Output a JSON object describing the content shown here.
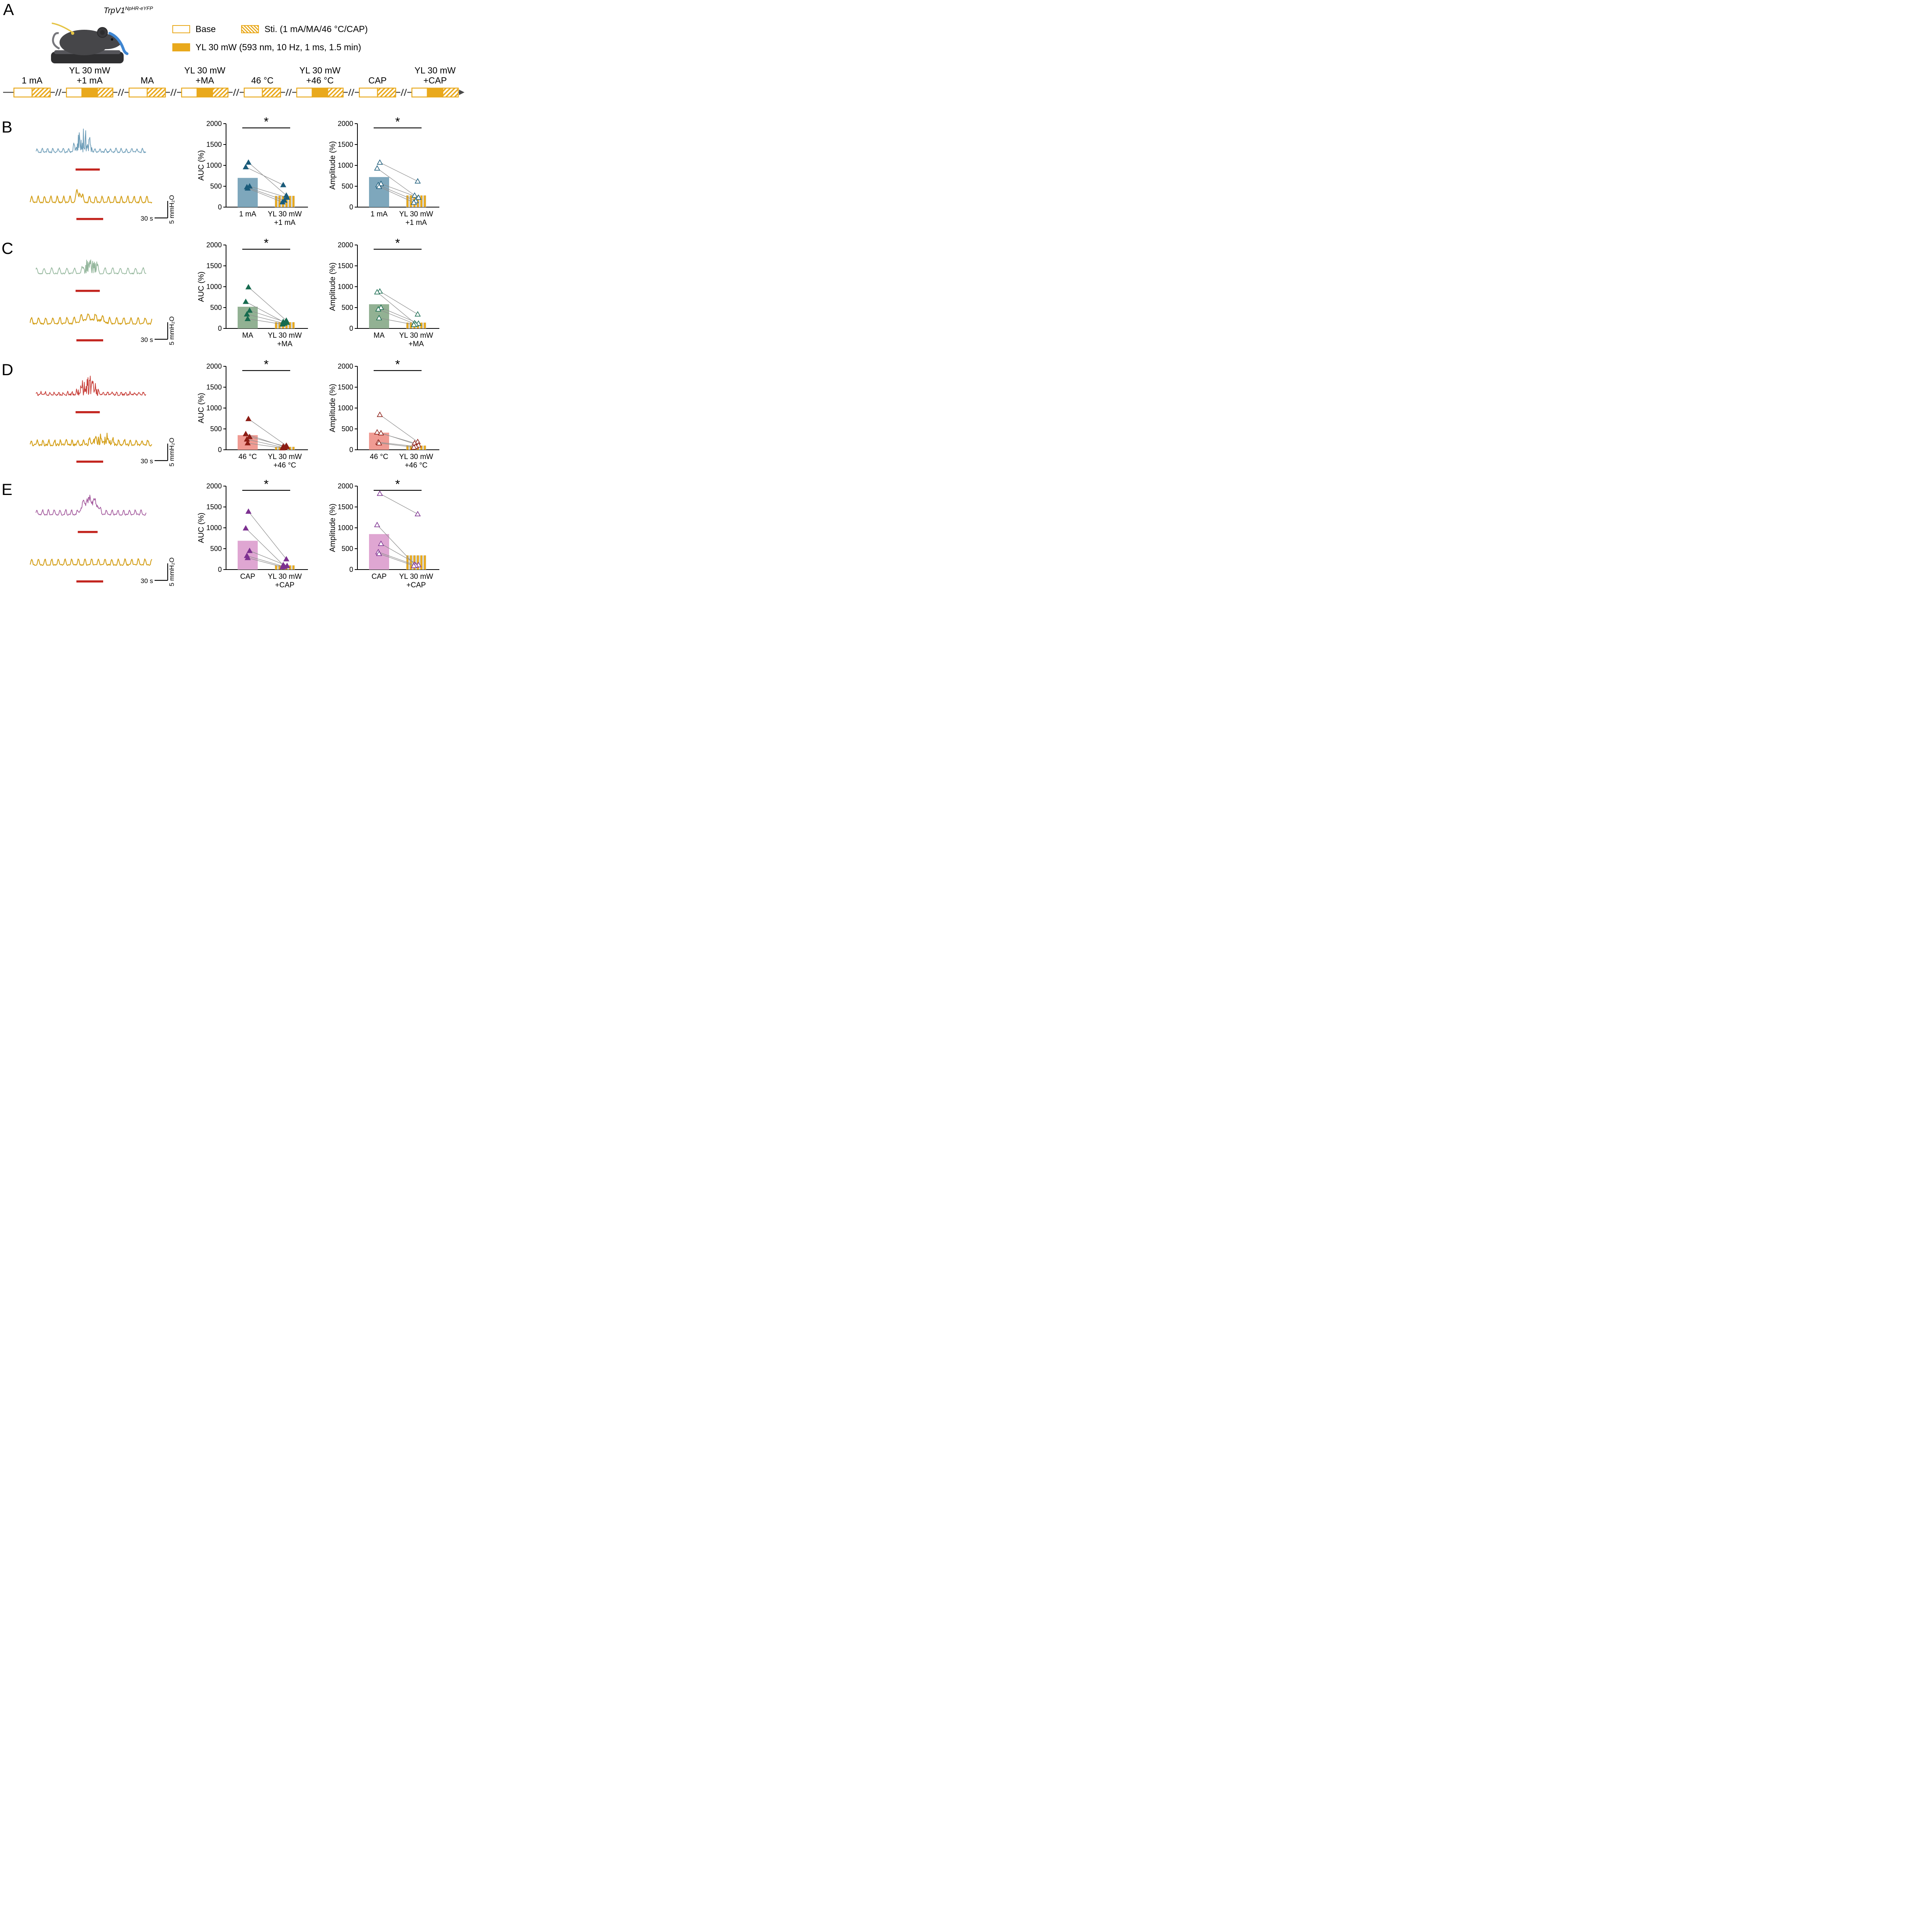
{
  "panel_a": {
    "label": "A",
    "mouse_title": "TrpV1",
    "mouse_title_sup": "NpHR-eYFP",
    "legend_base": "Base",
    "legend_sti": "Sti. (1 mA/MA/46 °C/CAP)",
    "legend_yl": "YL 30 mW (593 nm, 10 Hz, 1 ms, 1.5 min)",
    "timeline_groups": [
      {
        "lines": [
          "1 mA"
        ],
        "yl": false
      },
      {
        "lines": [
          "YL 30 mW",
          "+1 mA"
        ],
        "yl": true
      },
      {
        "lines": [
          "MA"
        ],
        "yl": false
      },
      {
        "lines": [
          "YL 30 mW",
          "+MA"
        ],
        "yl": true
      },
      {
        "lines": [
          "46 °C"
        ],
        "yl": false
      },
      {
        "lines": [
          "YL 30 mW",
          "+46 °C"
        ],
        "yl": true
      },
      {
        "lines": [
          "CAP"
        ],
        "yl": false
      },
      {
        "lines": [
          "YL 30 mW",
          "+CAP"
        ],
        "yl": true
      }
    ]
  },
  "scalebar": {
    "time": "30 s",
    "amp": "5 mmH₂O"
  },
  "colors": {
    "gold": "#E9A91C",
    "gold_trace": "#D4A01B",
    "stim_red": "#C3251F",
    "stripe_gray": "#D4D9DD",
    "pair_gray": "#8F8F8F",
    "axis": "#000000"
  },
  "panels": [
    {
      "label": "B",
      "trace_color": "#6D9DB8",
      "point_color": "#1A5B7A",
      "bar_color": "#7EA7BC",
      "trace_top": {
        "seed": 3,
        "osc_amp": 9,
        "freq": 0.55,
        "phase": 0.3,
        "noise": 4,
        "burst": [
          0.33,
          0.52
        ],
        "burst_amp": 58,
        "smooth": false
      },
      "trace_bottom": {
        "seed": 5,
        "osc_amp": 16,
        "freq": 0.5,
        "phase": 0,
        "noise": 3,
        "burst": [
          0.36,
          0.44
        ],
        "burst_amp": 26,
        "smooth": true
      },
      "stim_top": [
        0.36,
        0.58
      ],
      "stim_bottom": [
        0.38,
        0.6
      ]
    },
    {
      "label": "C",
      "trace_color": "#95B79D",
      "point_color": "#176B4F",
      "bar_color": "#92B193",
      "trace_top": {
        "seed": 8,
        "osc_amp": 14,
        "freq": 0.38,
        "phase": 1.1,
        "noise": 3,
        "burst": [
          0.4,
          0.58
        ],
        "burst_amp": 38,
        "smooth": false
      },
      "trace_bottom": {
        "seed": 9,
        "osc_amp": 15,
        "freq": 0.45,
        "phase": 0.4,
        "noise": 4,
        "burst": [
          0.35,
          0.65
        ],
        "burst_amp": 14,
        "smooth": true
      },
      "stim_top": [
        0.36,
        0.58
      ],
      "stim_bottom": [
        0.38,
        0.6
      ]
    },
    {
      "label": "D",
      "trace_color": "#C8423C",
      "point_color": "#8C1D15",
      "bar_color": "#F09B93",
      "trace_top": {
        "seed": 12,
        "osc_amp": 7,
        "freq": 0.65,
        "phase": 0.8,
        "noise": 5,
        "burst": [
          0.36,
          0.58
        ],
        "burst_amp": 48,
        "smooth": false
      },
      "trace_bottom": {
        "seed": 13,
        "osc_amp": 13,
        "freq": 0.55,
        "phase": 0.2,
        "noise": 6,
        "burst": [
          0.45,
          0.72
        ],
        "burst_amp": 18,
        "smooth": false
      },
      "stim_top": [
        0.36,
        0.58
      ],
      "stim_bottom": [
        0.38,
        0.6
      ]
    },
    {
      "label": "E",
      "trace_color": "#A45B9E",
      "point_color": "#7C3090",
      "bar_color": "#DFA6D2",
      "trace_top": {
        "seed": 21,
        "osc_amp": 12,
        "freq": 0.5,
        "phase": 0.6,
        "noise": 3.5,
        "burst": [
          0.38,
          0.6
        ],
        "burst_amp": 45,
        "smooth": true
      },
      "trace_bottom": {
        "seed": 22,
        "osc_amp": 15,
        "freq": 0.48,
        "phase": 0.1,
        "noise": 3,
        "burst": null,
        "burst_amp": 0,
        "smooth": true
      },
      "stim_top": [
        0.38,
        0.56
      ],
      "stim_bottom": [
        0.38,
        0.6
      ]
    }
  ],
  "chart_data": [
    {
      "panel": "B",
      "type": "bar",
      "ylabel": "AUC (%)",
      "ylim": [
        0,
        2000
      ],
      "yticks": [
        0,
        500,
        1000,
        1500,
        2000
      ],
      "categories": [
        [
          "1 mA"
        ],
        [
          "YL 30 mW",
          "+1 mA"
        ]
      ],
      "bar_means": [
        700,
        270
      ],
      "pairs": [
        [
          1070,
          280
        ],
        [
          960,
          530
        ],
        [
          500,
          230
        ],
        [
          480,
          160
        ],
        [
          450,
          120
        ]
      ],
      "significance": "*",
      "point_style": "filled"
    },
    {
      "panel": "B",
      "type": "bar",
      "ylabel": "Amplitude (%)",
      "ylim": [
        0,
        2000
      ],
      "yticks": [
        0,
        500,
        1000,
        1500,
        2000
      ],
      "categories": [
        [
          "1 mA"
        ],
        [
          "YL 30 mW",
          "+1 mA"
        ]
      ],
      "bar_means": [
        720,
        280
      ],
      "pairs": [
        [
          1070,
          620
        ],
        [
          930,
          280
        ],
        [
          560,
          230
        ],
        [
          530,
          150
        ],
        [
          490,
          110
        ]
      ],
      "significance": "*",
      "point_style": "open"
    },
    {
      "panel": "C",
      "type": "bar",
      "ylabel": "AUC (%)",
      "ylim": [
        0,
        2000
      ],
      "yticks": [
        0,
        500,
        1000,
        1500,
        2000
      ],
      "categories": [
        [
          "MA"
        ],
        [
          "YL 30 mW",
          "+MA"
        ]
      ],
      "bar_means": [
        520,
        150
      ],
      "pairs": [
        [
          990,
          190
        ],
        [
          640,
          160
        ],
        [
          430,
          140
        ],
        [
          340,
          120
        ],
        [
          230,
          100
        ]
      ],
      "significance": "*",
      "point_style": "filled"
    },
    {
      "panel": "C",
      "type": "bar",
      "ylabel": "Amplitude (%)",
      "ylim": [
        0,
        2000
      ],
      "yticks": [
        0,
        500,
        1000,
        1500,
        2000
      ],
      "categories": [
        [
          "MA"
        ],
        [
          "YL 30 mW",
          "+MA"
        ]
      ],
      "bar_means": [
        580,
        140
      ],
      "pairs": [
        [
          890,
          340
        ],
        [
          870,
          130
        ],
        [
          500,
          120
        ],
        [
          460,
          100
        ],
        [
          250,
          90
        ]
      ],
      "significance": "*",
      "point_style": "open"
    },
    {
      "panel": "D",
      "type": "bar",
      "ylabel": "AUC (%)",
      "ylim": [
        0,
        2000
      ],
      "yticks": [
        0,
        500,
        1000,
        1500,
        2000
      ],
      "categories": [
        [
          "46 °C"
        ],
        [
          "YL 30 mW",
          "+46 °C"
        ]
      ],
      "bar_means": [
        350,
        70
      ],
      "pairs": [
        [
          740,
          100
        ],
        [
          380,
          80
        ],
        [
          310,
          70
        ],
        [
          250,
          50
        ],
        [
          160,
          40
        ]
      ],
      "significance": "*",
      "point_style": "filled"
    },
    {
      "panel": "D",
      "type": "bar",
      "ylabel": "Amplitude (%)",
      "ylim": [
        0,
        2000
      ],
      "yticks": [
        0,
        500,
        1000,
        1500,
        2000
      ],
      "categories": [
        [
          "46 °C"
        ],
        [
          "YL 30 mW",
          "+46 °C"
        ]
      ],
      "bar_means": [
        410,
        100
      ],
      "pairs": [
        [
          840,
          190
        ],
        [
          420,
          160
        ],
        [
          400,
          110
        ],
        [
          180,
          80
        ],
        [
          160,
          60
        ]
      ],
      "significance": "*",
      "point_style": "open"
    },
    {
      "panel": "E",
      "type": "bar",
      "ylabel": "AUC (%)",
      "ylim": [
        0,
        2000
      ],
      "yticks": [
        0,
        500,
        1000,
        1500,
        2000
      ],
      "categories": [
        [
          "CAP"
        ],
        [
          "YL 30 mW",
          "+CAP"
        ]
      ],
      "bar_means": [
        690,
        100
      ],
      "pairs": [
        [
          1390,
          250
        ],
        [
          990,
          110
        ],
        [
          450,
          90
        ],
        [
          330,
          70
        ],
        [
          280,
          60
        ]
      ],
      "significance": "*",
      "point_style": "filled"
    },
    {
      "panel": "E",
      "type": "bar",
      "ylabel": "Amplitude (%)",
      "ylim": [
        0,
        2000
      ],
      "yticks": [
        0,
        500,
        1000,
        1500,
        2000
      ],
      "categories": [
        [
          "CAP"
        ],
        [
          "YL 30 mW",
          "+CAP"
        ]
      ],
      "bar_means": [
        850,
        340
      ],
      "pairs": [
        [
          1820,
          1330
        ],
        [
          1070,
          120
        ],
        [
          620,
          110
        ],
        [
          420,
          100
        ],
        [
          380,
          90
        ]
      ],
      "significance": "*",
      "point_style": "open"
    }
  ]
}
